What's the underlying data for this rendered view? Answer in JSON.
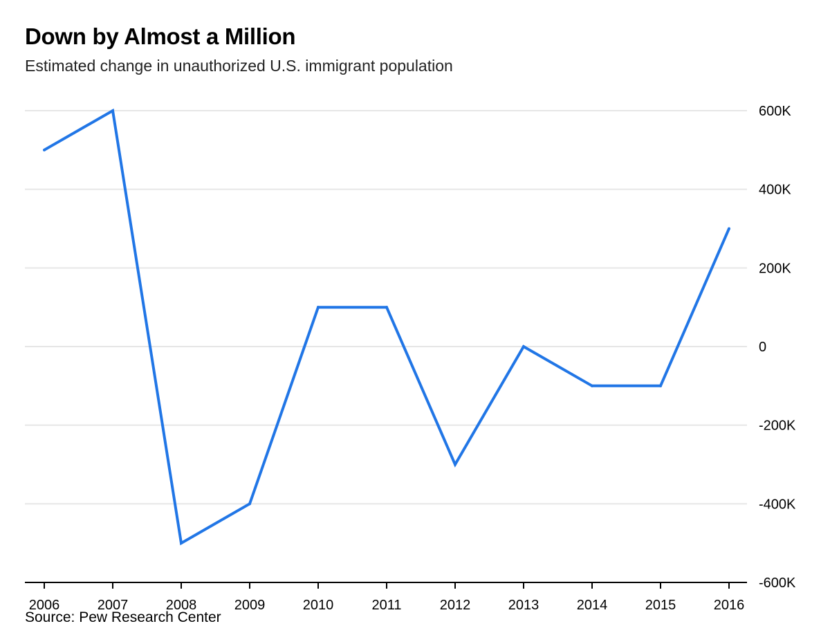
{
  "chart_data": {
    "type": "line",
    "title": "Down by Almost a Million",
    "subtitle": "Estimated change in unauthorized U.S. immigrant population",
    "source": "Source: Pew Research Center",
    "xlabel": "",
    "ylabel": "",
    "x": [
      "2006",
      "2007",
      "2008",
      "2009",
      "2010",
      "2011",
      "2012",
      "2013",
      "2014",
      "2015",
      "2016"
    ],
    "series": [
      {
        "name": "Estimated change",
        "values": [
          500000,
          600000,
          -500000,
          -400000,
          100000,
          100000,
          -300000,
          0,
          -100000,
          -100000,
          300000
        ],
        "color": "#2176e6"
      }
    ],
    "ylim": [
      -600000,
      600000
    ],
    "yticks": [
      {
        "value": 600000,
        "label": "600K"
      },
      {
        "value": 400000,
        "label": "400K"
      },
      {
        "value": 200000,
        "label": "200K"
      },
      {
        "value": 0,
        "label": "0"
      },
      {
        "value": -200000,
        "label": "-200K"
      },
      {
        "value": -400000,
        "label": "-400K"
      },
      {
        "value": -600000,
        "label": "-600K"
      }
    ],
    "y_axis_side": "right",
    "grid": true,
    "colors": {
      "line": "#2176e6",
      "grid": "#e6e6e6",
      "axis": "#000000"
    }
  }
}
